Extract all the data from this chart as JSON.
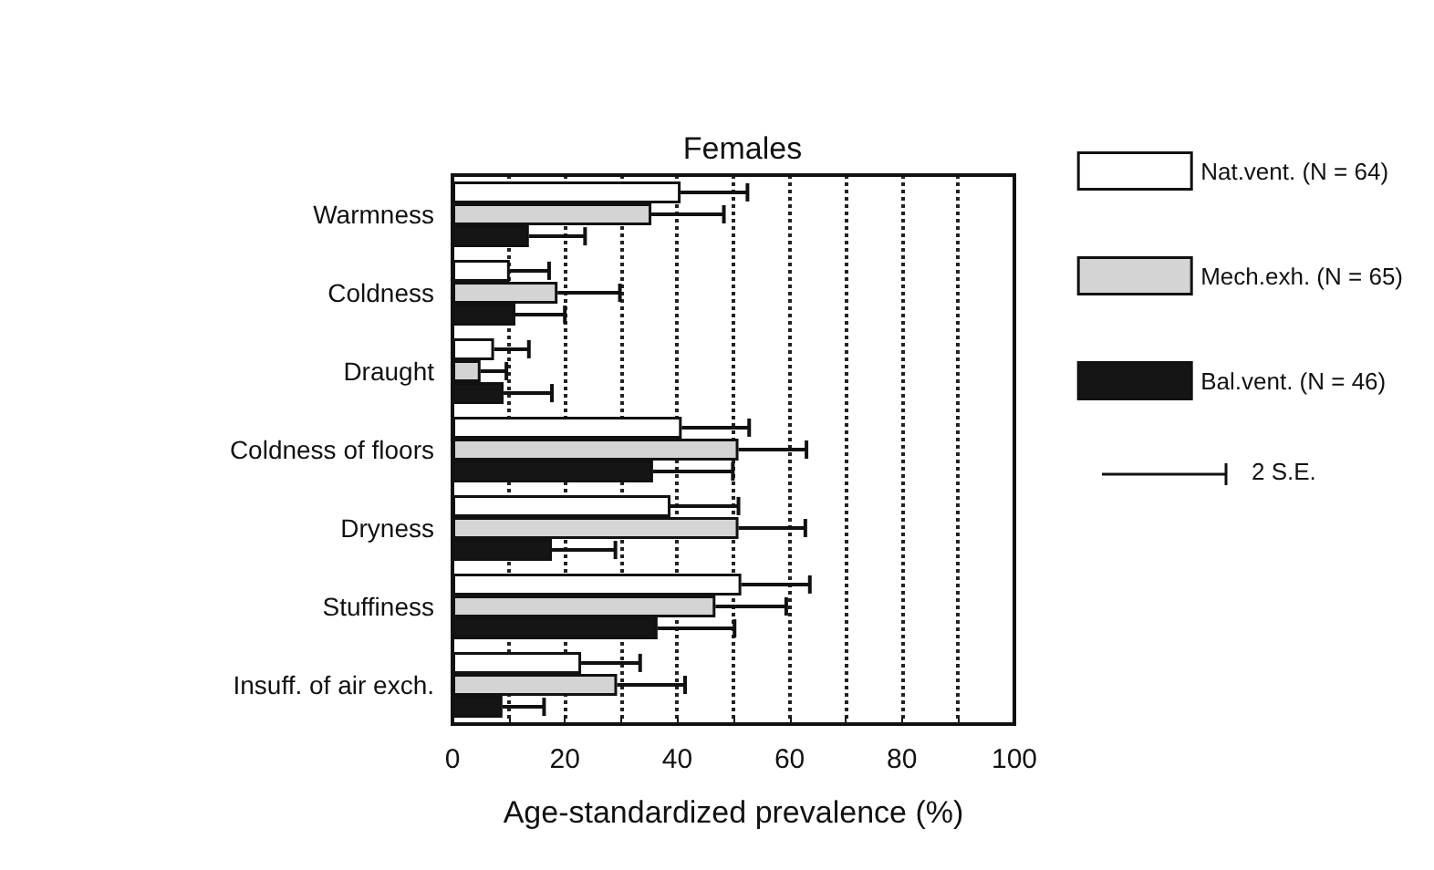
{
  "chart_data": {
    "type": "bar",
    "orientation": "horizontal",
    "title": "Females",
    "xlabel": "Age-standardized prevalence (%)",
    "categories": [
      "Warmness",
      "Coldness",
      "Draught",
      "Coldness of floors",
      "Dryness",
      "Stuffiness",
      "Insuff. of air exch."
    ],
    "series": [
      {
        "name": "Nat.vent. (N = 64)",
        "color": "#ffffff",
        "values": [
          40.6,
          10.2,
          7.4,
          40.8,
          38.8,
          51.4,
          22.9
        ],
        "errors": [
          11.9,
          7,
          6.2,
          12,
          12.1,
          12.2,
          10.5
        ]
      },
      {
        "name": "Mech.exh. (N = 65)",
        "color": "#d4d4d4",
        "values": [
          35.4,
          18.7,
          5,
          50.9,
          50.9,
          46.8,
          29.3
        ],
        "errors": [
          12.9,
          11.1,
          4.6,
          12.1,
          11.9,
          12.6,
          12.1
        ]
      },
      {
        "name": "Bal.vent. (N = 46)",
        "color": "#151515",
        "values": [
          13.6,
          11.2,
          9.1,
          35.7,
          17.7,
          36.5,
          8.9
        ],
        "errors": [
          10,
          8.8,
          8.6,
          14.2,
          11.3,
          13.7,
          7.4
        ]
      }
    ],
    "xlim": [
      0,
      100
    ],
    "xticks": [
      0,
      {
        "value": 10,
        "label": null
      },
      20,
      {
        "value": 30,
        "label": null
      },
      40,
      {
        "value": 50,
        "label": null
      },
      60,
      {
        "value": 70,
        "label": null
      },
      80,
      {
        "value": 90,
        "label": null
      },
      100
    ],
    "grid": "x",
    "legend": "right",
    "annotations": [
      "2 S.E."
    ]
  }
}
